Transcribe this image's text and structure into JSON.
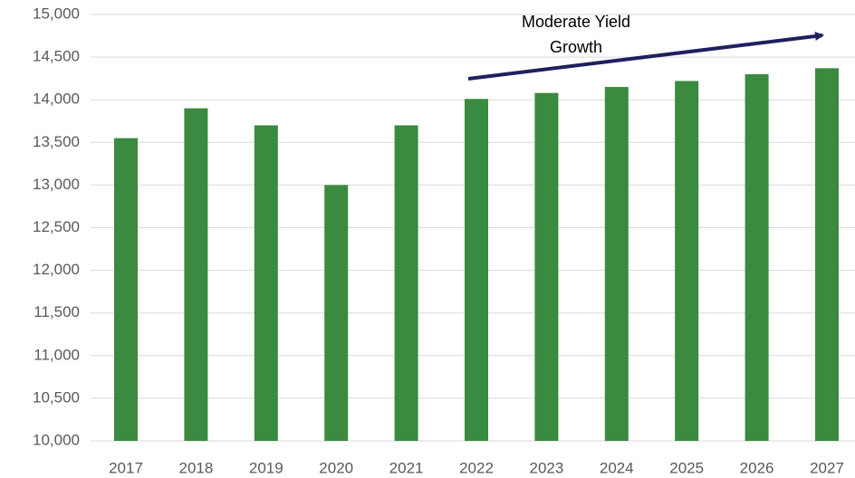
{
  "chart_data": {
    "type": "bar",
    "categories": [
      "2017",
      "2018",
      "2019",
      "2020",
      "2021",
      "2022",
      "2023",
      "2024",
      "2025",
      "2026",
      "2027"
    ],
    "values": [
      13550,
      13900,
      13700,
      13000,
      13700,
      14010,
      14080,
      14150,
      14220,
      14300,
      14370
    ],
    "color": "#3a8a3f",
    "ylim": [
      10000,
      15000
    ],
    "yticks": [
      {
        "value": 10000,
        "label": "10,000"
      },
      {
        "value": 10500,
        "label": "10,500"
      },
      {
        "value": 11000,
        "label": "11,000"
      },
      {
        "value": 11500,
        "label": "11,500"
      },
      {
        "value": 12000,
        "label": "12,000"
      },
      {
        "value": 12500,
        "label": "12,500"
      },
      {
        "value": 13000,
        "label": "13,000"
      },
      {
        "value": 13500,
        "label": "13,500"
      },
      {
        "value": 14000,
        "label": "14,000"
      },
      {
        "value": 14500,
        "label": "14,500"
      },
      {
        "value": 15000,
        "label": "15,000"
      }
    ],
    "grid": true,
    "annotation": "Moderate Yield Growth"
  }
}
